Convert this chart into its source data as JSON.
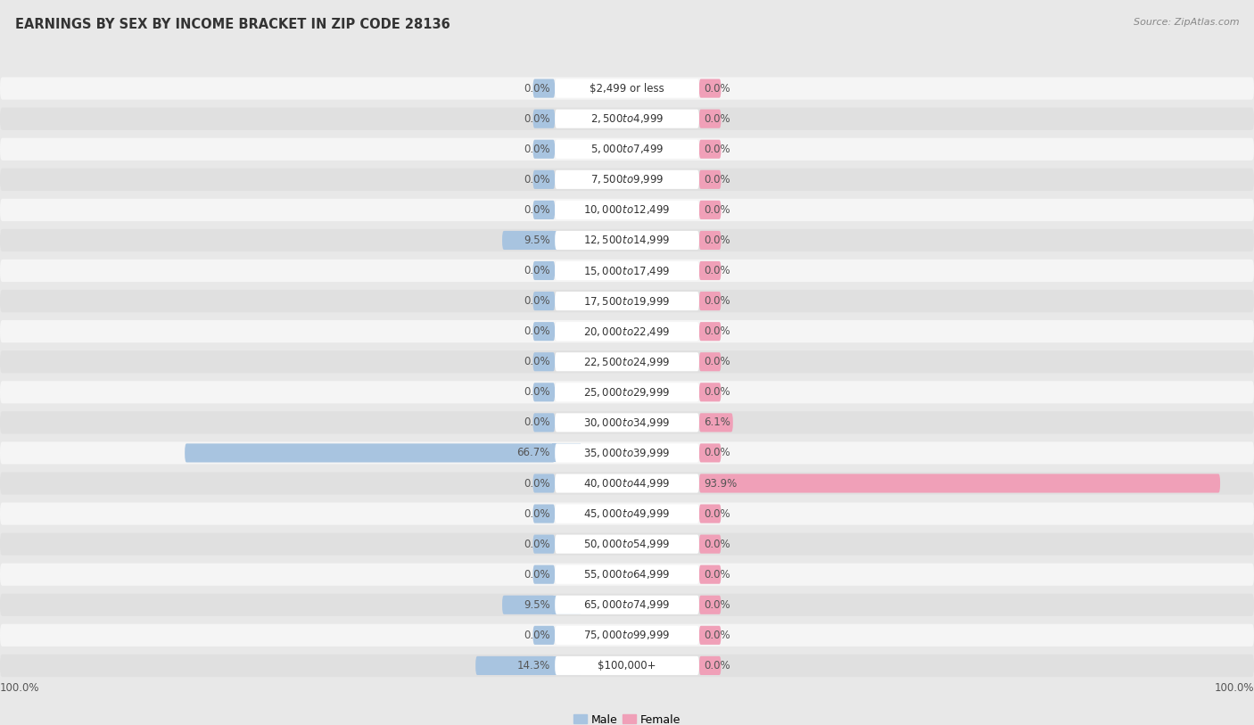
{
  "title": "EARNINGS BY SEX BY INCOME BRACKET IN ZIP CODE 28136",
  "source": "Source: ZipAtlas.com",
  "categories": [
    "$2,499 or less",
    "$2,500 to $4,999",
    "$5,000 to $7,499",
    "$7,500 to $9,999",
    "$10,000 to $12,499",
    "$12,500 to $14,999",
    "$15,000 to $17,499",
    "$17,500 to $19,999",
    "$20,000 to $22,499",
    "$22,500 to $24,999",
    "$25,000 to $29,999",
    "$30,000 to $34,999",
    "$35,000 to $39,999",
    "$40,000 to $44,999",
    "$45,000 to $49,999",
    "$50,000 to $54,999",
    "$55,000 to $64,999",
    "$65,000 to $74,999",
    "$75,000 to $99,999",
    "$100,000+"
  ],
  "male_values": [
    0.0,
    0.0,
    0.0,
    0.0,
    0.0,
    9.5,
    0.0,
    0.0,
    0.0,
    0.0,
    0.0,
    0.0,
    66.7,
    0.0,
    0.0,
    0.0,
    0.0,
    9.5,
    0.0,
    14.3
  ],
  "female_values": [
    0.0,
    0.0,
    0.0,
    0.0,
    0.0,
    0.0,
    0.0,
    0.0,
    0.0,
    0.0,
    0.0,
    6.1,
    0.0,
    93.9,
    0.0,
    0.0,
    0.0,
    0.0,
    0.0,
    0.0
  ],
  "male_color": "#a8c4e0",
  "female_color": "#f0a0b8",
  "male_label": "Male",
  "female_label": "Female",
  "bg_color": "#e8e8e8",
  "row_color_odd": "#f5f5f5",
  "row_color_even": "#e0e0e0",
  "max_value": 100.0,
  "x_left_label": "100.0%",
  "x_right_label": "100.0%",
  "title_fontsize": 10.5,
  "label_fontsize": 8.5,
  "category_fontsize": 8.5,
  "value_label_color": "#555555",
  "title_color": "#333333",
  "source_color": "#888888"
}
